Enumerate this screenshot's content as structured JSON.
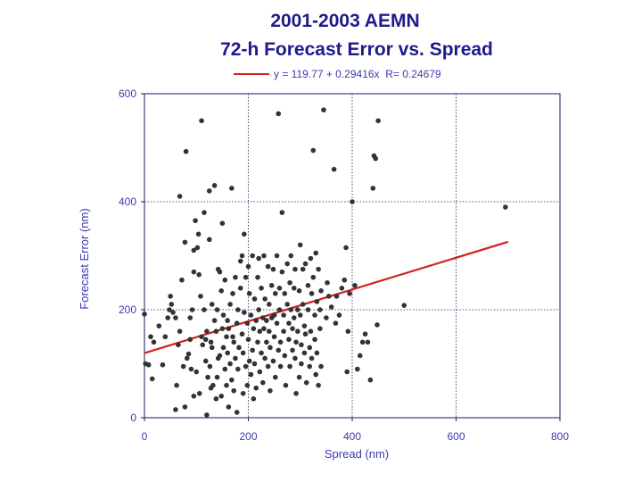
{
  "chart_data": {
    "type": "scatter",
    "title": "2001-2003 AEMN",
    "subtitle": "72-h Forecast Error vs. Spread",
    "xlabel": "Spread (nm)",
    "ylabel": "Forecast Error (nm)",
    "xlim": [
      0,
      800
    ],
    "ylim": [
      0,
      600
    ],
    "xticks": [
      0,
      200,
      400,
      600,
      800
    ],
    "yticks": [
      0,
      200,
      400,
      600
    ],
    "grid": true,
    "legend": {
      "position": "top",
      "label": "y = 119.77 + 0.29416x  R= 0.24679"
    },
    "fit": {
      "intercept": 119.77,
      "slope": 0.29416,
      "r": 0.24679,
      "x_range": [
        0,
        700
      ]
    },
    "colors": {
      "points": "#333333",
      "fit_line": "#d42020",
      "text": "#3b3bb0",
      "title": "#1f1a8c",
      "grid": "#1a1a5a"
    },
    "points": [
      [
        0,
        192
      ],
      [
        2,
        100
      ],
      [
        8,
        98
      ],
      [
        15,
        72
      ],
      [
        12,
        150
      ],
      [
        18,
        140
      ],
      [
        28,
        170
      ],
      [
        35,
        98
      ],
      [
        40,
        150
      ],
      [
        45,
        185
      ],
      [
        48,
        200
      ],
      [
        50,
        225
      ],
      [
        52,
        210
      ],
      [
        55,
        195
      ],
      [
        60,
        15
      ],
      [
        60,
        185
      ],
      [
        62,
        60
      ],
      [
        65,
        135
      ],
      [
        68,
        160
      ],
      [
        68,
        410
      ],
      [
        72,
        255
      ],
      [
        75,
        95
      ],
      [
        78,
        20
      ],
      [
        78,
        325
      ],
      [
        80,
        493
      ],
      [
        82,
        110
      ],
      [
        85,
        118
      ],
      [
        88,
        145
      ],
      [
        88,
        185
      ],
      [
        90,
        90
      ],
      [
        92,
        200
      ],
      [
        95,
        310
      ],
      [
        95,
        270
      ],
      [
        95,
        40
      ],
      [
        98,
        365
      ],
      [
        100,
        85
      ],
      [
        102,
        315
      ],
      [
        104,
        340
      ],
      [
        105,
        265
      ],
      [
        106,
        45
      ],
      [
        108,
        225
      ],
      [
        110,
        550
      ],
      [
        110,
        150
      ],
      [
        112,
        135
      ],
      [
        115,
        200
      ],
      [
        115,
        380
      ],
      [
        118,
        145
      ],
      [
        118,
        105
      ],
      [
        120,
        160
      ],
      [
        120,
        5
      ],
      [
        122,
        75
      ],
      [
        125,
        330
      ],
      [
        125,
        420
      ],
      [
        126,
        95
      ],
      [
        128,
        140
      ],
      [
        128,
        55
      ],
      [
        130,
        130
      ],
      [
        130,
        210
      ],
      [
        132,
        60
      ],
      [
        135,
        430
      ],
      [
        135,
        180
      ],
      [
        138,
        35
      ],
      [
        138,
        160
      ],
      [
        140,
        200
      ],
      [
        140,
        75
      ],
      [
        142,
        275
      ],
      [
        142,
        110
      ],
      [
        145,
        270
      ],
      [
        145,
        115
      ],
      [
        148,
        235
      ],
      [
        148,
        40
      ],
      [
        150,
        360
      ],
      [
        150,
        165
      ],
      [
        152,
        190
      ],
      [
        152,
        130
      ],
      [
        155,
        255
      ],
      [
        155,
        90
      ],
      [
        158,
        150
      ],
      [
        158,
        60
      ],
      [
        160,
        120
      ],
      [
        160,
        180
      ],
      [
        162,
        165
      ],
      [
        162,
        20
      ],
      [
        165,
        210
      ],
      [
        165,
        100
      ],
      [
        168,
        425
      ],
      [
        168,
        70
      ],
      [
        170,
        150
      ],
      [
        170,
        230
      ],
      [
        172,
        140
      ],
      [
        172,
        50
      ],
      [
        175,
        260
      ],
      [
        175,
        110
      ],
      [
        178,
        175
      ],
      [
        178,
        10
      ],
      [
        180,
        90
      ],
      [
        180,
        200
      ],
      [
        182,
        130
      ],
      [
        185,
        290
      ],
      [
        185,
        240
      ],
      [
        188,
        300
      ],
      [
        188,
        155
      ],
      [
        190,
        120
      ],
      [
        190,
        45
      ],
      [
        192,
        340
      ],
      [
        192,
        195
      ],
      [
        195,
        260
      ],
      [
        195,
        95
      ],
      [
        198,
        175
      ],
      [
        198,
        60
      ],
      [
        200,
        280
      ],
      [
        200,
        145
      ],
      [
        202,
        230
      ],
      [
        202,
        105
      ],
      [
        205,
        190
      ],
      [
        205,
        80
      ],
      [
        208,
        300
      ],
      [
        208,
        125
      ],
      [
        210,
        165
      ],
      [
        210,
        35
      ],
      [
        212,
        220
      ],
      [
        212,
        100
      ],
      [
        215,
        180
      ],
      [
        215,
        55
      ],
      [
        218,
        260
      ],
      [
        218,
        140
      ],
      [
        220,
        295
      ],
      [
        220,
        200
      ],
      [
        222,
        160
      ],
      [
        222,
        85
      ],
      [
        225,
        240
      ],
      [
        225,
        120
      ],
      [
        228,
        185
      ],
      [
        228,
        65
      ],
      [
        230,
        300
      ],
      [
        230,
        165
      ],
      [
        232,
        220
      ],
      [
        232,
        110
      ],
      [
        235,
        180
      ],
      [
        235,
        140
      ],
      [
        238,
        280
      ],
      [
        238,
        95
      ],
      [
        240,
        210
      ],
      [
        240,
        160
      ],
      [
        242,
        130
      ],
      [
        242,
        50
      ],
      [
        245,
        245
      ],
      [
        245,
        185
      ],
      [
        248,
        275
      ],
      [
        248,
        105
      ],
      [
        250,
        190
      ],
      [
        250,
        150
      ],
      [
        252,
        230
      ],
      [
        252,
        75
      ],
      [
        255,
        300
      ],
      [
        255,
        175
      ],
      [
        258,
        563
      ],
      [
        258,
        125
      ],
      [
        260,
        240
      ],
      [
        260,
        200
      ],
      [
        262,
        140
      ],
      [
        262,
        95
      ],
      [
        265,
        380
      ],
      [
        265,
        270
      ],
      [
        268,
        190
      ],
      [
        268,
        160
      ],
      [
        270,
        230
      ],
      [
        270,
        115
      ],
      [
        272,
        60
      ],
      [
        275,
        285
      ],
      [
        275,
        210
      ],
      [
        278,
        175
      ],
      [
        278,
        145
      ],
      [
        280,
        250
      ],
      [
        280,
        95
      ],
      [
        282,
        300
      ],
      [
        282,
        200
      ],
      [
        285,
        165
      ],
      [
        285,
        125
      ],
      [
        288,
        240
      ],
      [
        288,
        185
      ],
      [
        290,
        275
      ],
      [
        290,
        110
      ],
      [
        292,
        140
      ],
      [
        292,
        45
      ],
      [
        295,
        200
      ],
      [
        295,
        160
      ],
      [
        298,
        235
      ],
      [
        298,
        75
      ],
      [
        300,
        320
      ],
      [
        300,
        190
      ],
      [
        302,
        135
      ],
      [
        302,
        100
      ],
      [
        305,
        275
      ],
      [
        305,
        210
      ],
      [
        308,
        170
      ],
      [
        308,
        120
      ],
      [
        310,
        285
      ],
      [
        310,
        155
      ],
      [
        312,
        65
      ],
      [
        315,
        245
      ],
      [
        315,
        200
      ],
      [
        318,
        130
      ],
      [
        318,
        95
      ],
      [
        320,
        295
      ],
      [
        320,
        160
      ],
      [
        322,
        230
      ],
      [
        322,
        110
      ],
      [
        325,
        495
      ],
      [
        325,
        260
      ],
      [
        328,
        190
      ],
      [
        328,
        145
      ],
      [
        330,
        305
      ],
      [
        330,
        80
      ],
      [
        332,
        215
      ],
      [
        332,
        120
      ],
      [
        335,
        275
      ],
      [
        335,
        60
      ],
      [
        338,
        200
      ],
      [
        338,
        165
      ],
      [
        340,
        235
      ],
      [
        340,
        95
      ],
      [
        345,
        570
      ],
      [
        350,
        185
      ],
      [
        352,
        250
      ],
      [
        355,
        225
      ],
      [
        360,
        205
      ],
      [
        365,
        460
      ],
      [
        368,
        175
      ],
      [
        370,
        225
      ],
      [
        375,
        190
      ],
      [
        380,
        240
      ],
      [
        385,
        255
      ],
      [
        388,
        315
      ],
      [
        390,
        85
      ],
      [
        392,
        160
      ],
      [
        395,
        230
      ],
      [
        400,
        400
      ],
      [
        405,
        245
      ],
      [
        410,
        90
      ],
      [
        415,
        115
      ],
      [
        420,
        140
      ],
      [
        425,
        155
      ],
      [
        430,
        140
      ],
      [
        435,
        70
      ],
      [
        440,
        425
      ],
      [
        442,
        485
      ],
      [
        445,
        480
      ],
      [
        448,
        172
      ],
      [
        450,
        550
      ],
      [
        500,
        208
      ],
      [
        695,
        390
      ]
    ]
  }
}
